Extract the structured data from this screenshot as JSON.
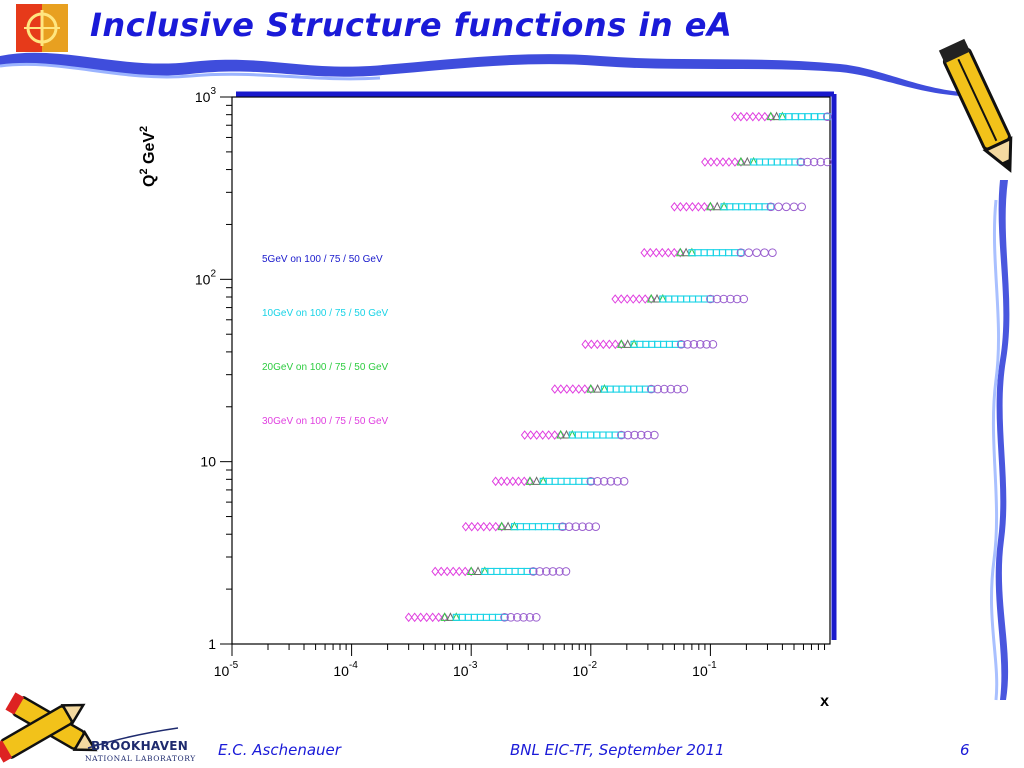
{
  "slide": {
    "title": "Inclusive Structure functions in eA",
    "footer_author": "E.C. Aschenauer",
    "footer_event": "BNL EIC-TF, September 2011",
    "page_number": "6",
    "lab_name": "BROOKHAVEN",
    "lab_subtitle": "NATIONAL LABORATORY"
  },
  "chart_data": {
    "type": "scatter",
    "title": "",
    "xlabel": "x",
    "ylabel": "Q2 GeV2",
    "xscale": "log",
    "yscale": "log",
    "xlim": [
      1e-05,
      1
    ],
    "ylim": [
      1,
      1000
    ],
    "x_ticks": [
      {
        "mantissa": "10",
        "exp": "-5"
      },
      {
        "mantissa": "10",
        "exp": "-4"
      },
      {
        "mantissa": "10",
        "exp": "-3"
      },
      {
        "mantissa": "10",
        "exp": "-2"
      },
      {
        "mantissa": "10",
        "exp": "-1"
      }
    ],
    "y_ticks": [
      {
        "mantissa": "1",
        "exp": ""
      },
      {
        "mantissa": "10",
        "exp": ""
      },
      {
        "mantissa": "10",
        "exp": "2"
      },
      {
        "mantissa": "10",
        "exp": "3"
      }
    ],
    "legend_position": "left",
    "series": [
      {
        "name": "5GeV on 100 / 75 / 50 GeV",
        "color": "#1a1acc",
        "marker": "triangle"
      },
      {
        "name": "10GeV on 100 / 75 / 50 GeV",
        "color": "#19d3e6",
        "marker": "square"
      },
      {
        "name": "20GeV on 100 / 75 / 50 GeV",
        "color": "#2ecc40",
        "marker": "triangle"
      },
      {
        "name": "30GeV on 100 / 75 / 50 GeV",
        "color": "#e040e0",
        "marker": "diamond"
      }
    ],
    "circle_color": "#9a5fcf",
    "bins": [
      {
        "q2": 1.4,
        "diamond_x": [
          0.0003,
          0.0006
        ],
        "triangle_x": [
          0.0006,
          0.00075
        ],
        "square_x": [
          0.00075,
          0.0019
        ],
        "circle_x": [
          0.0019,
          0.0035
        ]
      },
      {
        "q2": 2.5,
        "diamond_x": [
          0.0005,
          0.001
        ],
        "triangle_x": [
          0.001,
          0.0013
        ],
        "square_x": [
          0.0013,
          0.0033
        ],
        "circle_x": [
          0.0033,
          0.0062
        ]
      },
      {
        "q2": 4.4,
        "diamond_x": [
          0.0009,
          0.0018
        ],
        "triangle_x": [
          0.0018,
          0.0023
        ],
        "square_x": [
          0.0023,
          0.0058
        ],
        "circle_x": [
          0.0058,
          0.011
        ]
      },
      {
        "q2": 7.8,
        "diamond_x": [
          0.0016,
          0.0031
        ],
        "triangle_x": [
          0.0031,
          0.004
        ],
        "square_x": [
          0.004,
          0.01
        ],
        "circle_x": [
          0.01,
          0.019
        ]
      },
      {
        "q2": 14,
        "diamond_x": [
          0.0028,
          0.0056
        ],
        "triangle_x": [
          0.0056,
          0.007
        ],
        "square_x": [
          0.007,
          0.018
        ],
        "circle_x": [
          0.018,
          0.034
        ]
      },
      {
        "q2": 25,
        "diamond_x": [
          0.005,
          0.01
        ],
        "triangle_x": [
          0.01,
          0.013
        ],
        "square_x": [
          0.013,
          0.032
        ],
        "circle_x": [
          0.032,
          0.06
        ]
      },
      {
        "q2": 44,
        "diamond_x": [
          0.009,
          0.018
        ],
        "triangle_x": [
          0.018,
          0.023
        ],
        "square_x": [
          0.023,
          0.057
        ],
        "circle_x": [
          0.057,
          0.105
        ]
      },
      {
        "q2": 78,
        "diamond_x": [
          0.016,
          0.032
        ],
        "triangle_x": [
          0.032,
          0.04
        ],
        "square_x": [
          0.04,
          0.1
        ],
        "circle_x": [
          0.1,
          0.19
        ]
      },
      {
        "q2": 140,
        "diamond_x": [
          0.028,
          0.056
        ],
        "triangle_x": [
          0.056,
          0.07
        ],
        "square_x": [
          0.07,
          0.18
        ],
        "circle_x": [
          0.18,
          0.33
        ]
      },
      {
        "q2": 250,
        "diamond_x": [
          0.05,
          0.1
        ],
        "triangle_x": [
          0.1,
          0.13
        ],
        "square_x": [
          0.13,
          0.32
        ],
        "circle_x": [
          0.32,
          0.58
        ]
      },
      {
        "q2": 440,
        "diamond_x": [
          0.09,
          0.18
        ],
        "triangle_x": [
          0.18,
          0.23
        ],
        "square_x": [
          0.23,
          0.57
        ],
        "circle_x": [
          0.57,
          0.95
        ]
      },
      {
        "q2": 780,
        "diamond_x": [
          0.16,
          0.32
        ],
        "triangle_x": [
          0.32,
          0.4
        ],
        "square_x": [
          0.4,
          0.95
        ],
        "circle_x": [
          0.95,
          0.99
        ]
      }
    ]
  }
}
